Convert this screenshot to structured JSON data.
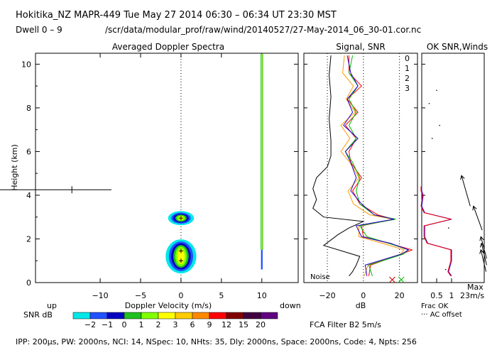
{
  "header": {
    "title": "Hokitika_NZ   MAPR-449   Tue May 27 2014 06:30 – 06:34 UT 23:30 MST",
    "dwell": "Dwell   0  –   9",
    "path": "/scr/data/modular_prof/raw/wind/20140527/27-May-2014_06_30-01.cor.nc"
  },
  "chart_data": [
    {
      "type": "heatmap",
      "title": "Averaged Doppler Spectra",
      "xlabel": "Doppler Velocity (m/s)",
      "ylabel": "Height (km)",
      "xlim": [
        -18,
        14.5
      ],
      "ylim": [
        0,
        10.5
      ],
      "xticks": [
        -10,
        -5,
        0,
        5,
        10
      ],
      "yticks": [
        0,
        2,
        4,
        6,
        8,
        10
      ],
      "left_label": "up",
      "right_label": "down",
      "colorbar": {
        "label": "SNR dB",
        "ticks": [
          "−2",
          "−1",
          "0",
          "1",
          "2",
          "3",
          "6",
          "9",
          "12",
          "15",
          "20"
        ],
        "colors": [
          "#00e8e8",
          "#2050ff",
          "#0000c0",
          "#20c020",
          "#80ff00",
          "#ffff00",
          "#ffcc00",
          "#ff8800",
          "#ff0000",
          "#800000",
          "#400040",
          "#600080"
        ]
      },
      "noise_marker": {
        "velocity": -13.5,
        "height": 4.25
      }
    },
    {
      "type": "line",
      "title": "Signal, SNR",
      "xlabel": "dB",
      "xticks": [
        -20,
        0,
        20
      ],
      "xlim": [
        -33,
        30
      ],
      "ylim": [
        0,
        10.5
      ],
      "noise_label": "Noise",
      "series": [
        {
          "name": "0",
          "color": "#ff0000"
        },
        {
          "name": "1",
          "color": "#ff9900"
        },
        {
          "name": "2",
          "color": "#00bb00"
        },
        {
          "name": "3",
          "color": "#2200cc"
        }
      ]
    },
    {
      "type": "line",
      "title": "OK SNR,Winds",
      "xlabel": "Frac OK",
      "xticks": [
        "0.5",
        "1"
      ],
      "xlim": [
        0,
        1
      ],
      "ylim": [
        0,
        10.5
      ],
      "ac_offset_label": "··· AC offset",
      "max_label": "Max",
      "max_value": "23m/s"
    }
  ],
  "filter_label": "FCA Filter B2   5m/s",
  "footer": "IPP: 200μs,  PW: 2000ns,  NCI:  14,  NSpec: 10, NHts: 35,  Dly: 2000ns,  Space: 2000ns,  Code: 4,  Npts: 256"
}
